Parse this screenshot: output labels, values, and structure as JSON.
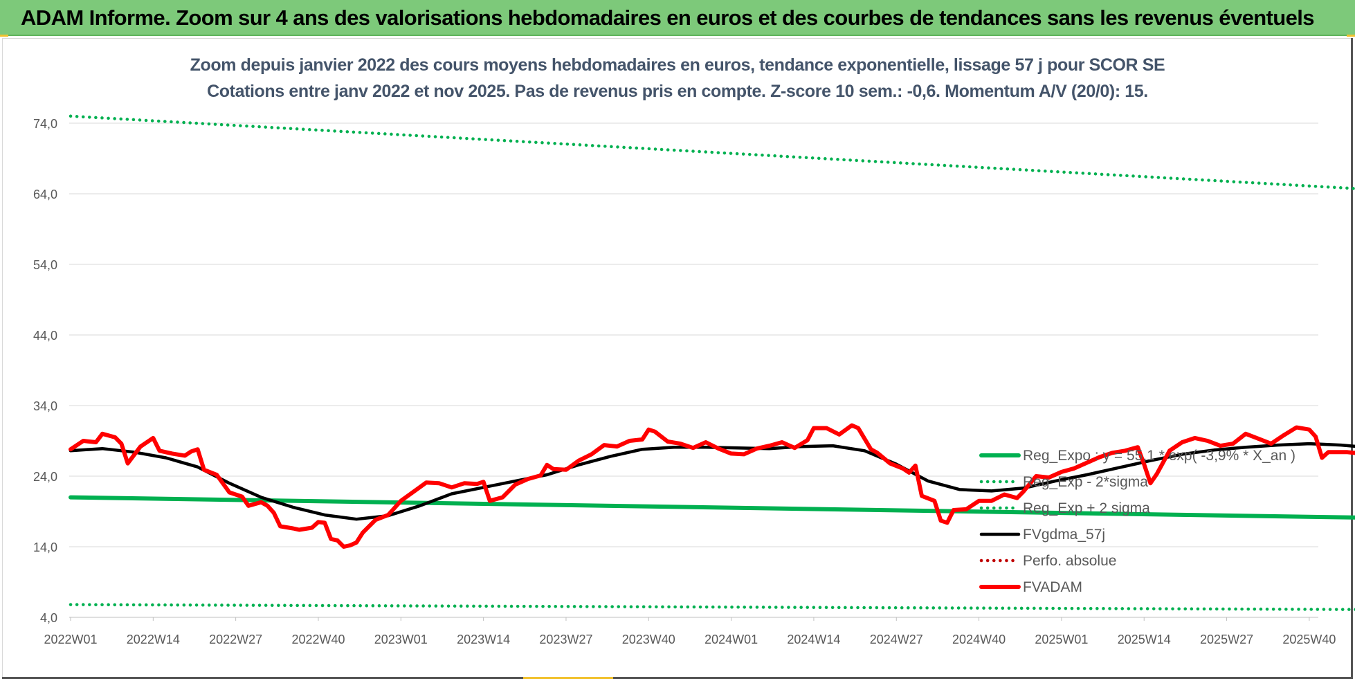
{
  "banner": {
    "title": "ADAM Informe. Zoom sur 4 ans des valorisations hebdomadaires en euros et des courbes de tendances sans les revenus éventuels"
  },
  "colors": {
    "banner_bg": "#7dc97a",
    "trend_green": "#00b050",
    "fvadam_red": "#ff0000",
    "fvgdma_black": "#000000",
    "perfo_red": "#c00000",
    "title_text": "#44546a"
  },
  "chart_data": {
    "type": "line",
    "title": "Zoom depuis janvier 2022 des cours moyens hebdomadaires en euros, tendance exponentielle, lissage 57 j pour SCOR SE",
    "subtitle": "Cotations entre janv 2022 et nov 2025. Pas de revenus pris en compte. Z-score 10 sem.: -0,6. Momentum A/V (20/0): 15.",
    "ylim": [
      4,
      76
    ],
    "y_ticks": [
      "4,0",
      "14,0",
      "24,0",
      "34,0",
      "44,0",
      "54,0",
      "64,0",
      "74,0"
    ],
    "x_tick_labels": [
      "2022W01",
      "2022W14",
      "2022W27",
      "2022W40",
      "2023W01",
      "2023W14",
      "2023W27",
      "2023W40",
      "2024W01",
      "2024W14",
      "2024W27",
      "2024W40",
      "2025W01",
      "2025W14",
      "2025W27",
      "2025W40"
    ],
    "x_tick_positions": [
      0,
      13,
      26,
      39,
      52,
      65,
      78,
      91,
      104,
      117,
      130,
      143,
      156,
      169,
      182,
      195
    ],
    "x_max_week": 205,
    "grid": true,
    "legend_position": "right",
    "series": [
      {
        "name": "Reg_Expo : y = 55,1 * exp( -3,9% * X_an )",
        "style": "solid",
        "color": "#00b050",
        "points": [
          [
            0,
            21.0
          ],
          [
            205,
            18.1
          ]
        ]
      },
      {
        "name": "Reg_Exp - 2*sigma",
        "style": "dotted",
        "color": "#00b050",
        "points": [
          [
            0,
            5.8
          ],
          [
            205,
            5.1
          ]
        ]
      },
      {
        "name": "Reg_Exp + 2 sigma",
        "style": "dotted",
        "color": "#00b050",
        "points": [
          [
            0,
            75.0
          ],
          [
            205,
            64.6
          ]
        ]
      },
      {
        "name": "FVgdma_57j",
        "style": "solid",
        "color": "#000000",
        "points": [
          [
            0,
            27.6
          ],
          [
            5,
            27.9
          ],
          [
            10,
            27.4
          ],
          [
            15,
            26.6
          ],
          [
            20,
            25.3
          ],
          [
            25,
            23.0
          ],
          [
            30,
            21.0
          ],
          [
            35,
            19.6
          ],
          [
            40,
            18.5
          ],
          [
            45,
            17.9
          ],
          [
            50,
            18.4
          ],
          [
            55,
            19.8
          ],
          [
            60,
            21.5
          ],
          [
            65,
            22.4
          ],
          [
            70,
            23.3
          ],
          [
            75,
            24.2
          ],
          [
            80,
            25.6
          ],
          [
            85,
            26.8
          ],
          [
            90,
            27.8
          ],
          [
            95,
            28.1
          ],
          [
            100,
            28.1
          ],
          [
            105,
            28.0
          ],
          [
            110,
            27.9
          ],
          [
            115,
            28.2
          ],
          [
            120,
            28.3
          ],
          [
            125,
            27.6
          ],
          [
            130,
            25.7
          ],
          [
            135,
            23.3
          ],
          [
            140,
            22.1
          ],
          [
            145,
            21.9
          ],
          [
            150,
            22.3
          ],
          [
            155,
            23.3
          ],
          [
            160,
            24.2
          ],
          [
            165,
            25.2
          ],
          [
            170,
            26.2
          ],
          [
            175,
            27.1
          ],
          [
            180,
            27.7
          ],
          [
            185,
            28.1
          ],
          [
            190,
            28.4
          ],
          [
            195,
            28.6
          ],
          [
            200,
            28.4
          ],
          [
            205,
            28.0
          ]
        ]
      },
      {
        "name": "Perfo. absolue",
        "style": "dotted",
        "color": "#c00000",
        "points": []
      },
      {
        "name": "FVADAM",
        "style": "solid",
        "color": "#ff0000",
        "points": [
          [
            0,
            27.8
          ],
          [
            2,
            29.0
          ],
          [
            4,
            28.8
          ],
          [
            5,
            30.0
          ],
          [
            7,
            29.5
          ],
          [
            8,
            28.6
          ],
          [
            9,
            25.8
          ],
          [
            11,
            28.2
          ],
          [
            13,
            29.4
          ],
          [
            14,
            27.6
          ],
          [
            16,
            27.2
          ],
          [
            18,
            26.9
          ],
          [
            19,
            27.5
          ],
          [
            20,
            27.8
          ],
          [
            21,
            24.9
          ],
          [
            23,
            24.2
          ],
          [
            25,
            21.7
          ],
          [
            27,
            21.1
          ],
          [
            28,
            19.8
          ],
          [
            30,
            20.3
          ],
          [
            31,
            19.8
          ],
          [
            32,
            18.8
          ],
          [
            33,
            16.9
          ],
          [
            35,
            16.6
          ],
          [
            36,
            16.4
          ],
          [
            38,
            16.7
          ],
          [
            39,
            17.5
          ],
          [
            40,
            17.4
          ],
          [
            41,
            15.1
          ],
          [
            42,
            14.9
          ],
          [
            43,
            14.0
          ],
          [
            44,
            14.2
          ],
          [
            45,
            14.6
          ],
          [
            46,
            16.0
          ],
          [
            48,
            17.8
          ],
          [
            50,
            18.5
          ],
          [
            52,
            20.5
          ],
          [
            54,
            21.8
          ],
          [
            56,
            23.1
          ],
          [
            58,
            23.0
          ],
          [
            60,
            22.4
          ],
          [
            62,
            23.0
          ],
          [
            64,
            22.9
          ],
          [
            65,
            23.2
          ],
          [
            66,
            20.5
          ],
          [
            68,
            21.0
          ],
          [
            70,
            22.8
          ],
          [
            72,
            23.6
          ],
          [
            74,
            24.1
          ],
          [
            75,
            25.6
          ],
          [
            76,
            25.0
          ],
          [
            78,
            24.9
          ],
          [
            80,
            26.2
          ],
          [
            82,
            27.1
          ],
          [
            84,
            28.4
          ],
          [
            86,
            28.2
          ],
          [
            88,
            29.0
          ],
          [
            90,
            29.2
          ],
          [
            91,
            30.6
          ],
          [
            92,
            30.3
          ],
          [
            94,
            28.9
          ],
          [
            96,
            28.6
          ],
          [
            98,
            28.0
          ],
          [
            100,
            28.8
          ],
          [
            102,
            27.9
          ],
          [
            104,
            27.2
          ],
          [
            106,
            27.1
          ],
          [
            108,
            27.9
          ],
          [
            110,
            28.3
          ],
          [
            112,
            28.8
          ],
          [
            114,
            28.0
          ],
          [
            116,
            29.1
          ],
          [
            117,
            30.8
          ],
          [
            119,
            30.8
          ],
          [
            121,
            29.9
          ],
          [
            123,
            31.2
          ],
          [
            124,
            30.8
          ],
          [
            126,
            27.8
          ],
          [
            127,
            27.3
          ],
          [
            129,
            25.8
          ],
          [
            131,
            25.1
          ],
          [
            132,
            24.5
          ],
          [
            133,
            25.5
          ],
          [
            134,
            21.2
          ],
          [
            136,
            20.5
          ],
          [
            137,
            17.7
          ],
          [
            138,
            17.4
          ],
          [
            139,
            19.2
          ],
          [
            141,
            19.3
          ],
          [
            143,
            20.5
          ],
          [
            145,
            20.5
          ],
          [
            147,
            21.4
          ],
          [
            149,
            20.9
          ],
          [
            150,
            21.8
          ],
          [
            152,
            24.0
          ],
          [
            154,
            23.8
          ],
          [
            156,
            24.6
          ],
          [
            158,
            25.1
          ],
          [
            160,
            25.9
          ],
          [
            162,
            26.7
          ],
          [
            164,
            27.3
          ],
          [
            166,
            27.6
          ],
          [
            168,
            28.1
          ],
          [
            169,
            25.7
          ],
          [
            170,
            23.0
          ],
          [
            171,
            24.3
          ],
          [
            173,
            27.6
          ],
          [
            175,
            28.8
          ],
          [
            177,
            29.4
          ],
          [
            179,
            29.0
          ],
          [
            181,
            28.3
          ],
          [
            183,
            28.6
          ],
          [
            185,
            30.0
          ],
          [
            187,
            29.3
          ],
          [
            189,
            28.6
          ],
          [
            191,
            29.8
          ],
          [
            193,
            30.9
          ],
          [
            195,
            30.6
          ],
          [
            196,
            29.6
          ],
          [
            197,
            26.6
          ],
          [
            198,
            27.4
          ],
          [
            200,
            27.4
          ],
          [
            201,
            27.4
          ],
          [
            202,
            27.3
          ],
          [
            205,
            27.2
          ]
        ]
      }
    ]
  }
}
